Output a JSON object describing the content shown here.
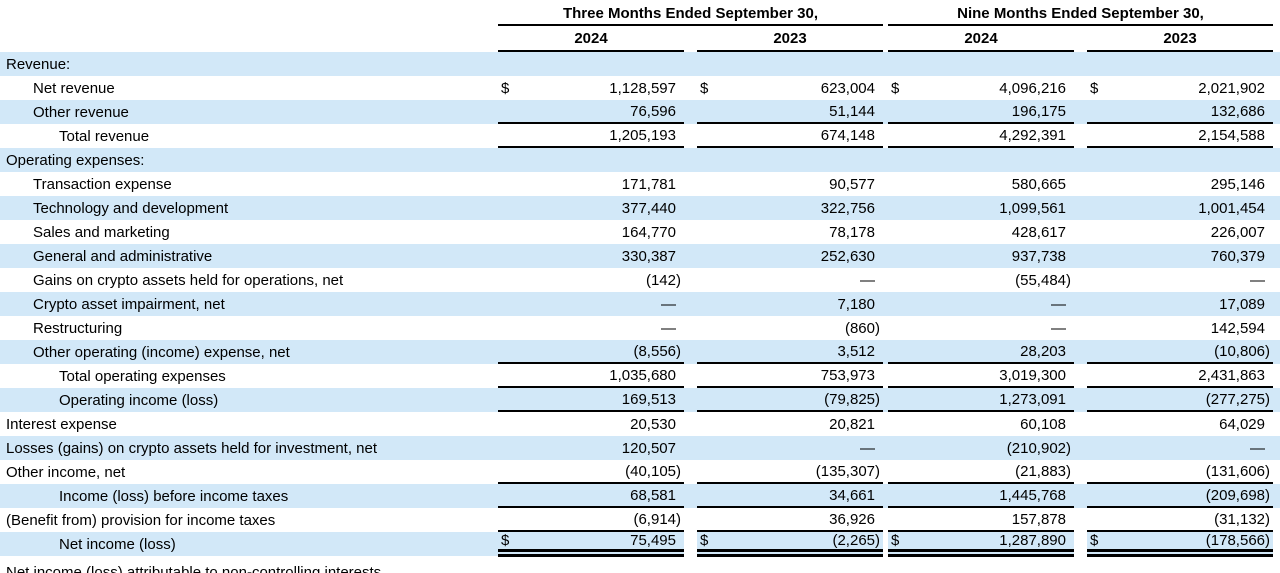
{
  "table": {
    "currency_symbol": "$",
    "stripe_color": "#d2e8f8",
    "line_color": "#000000",
    "header": {
      "period_groups": [
        {
          "label": "Three Months Ended September 30,",
          "years": [
            "2024",
            "2023"
          ]
        },
        {
          "label": "Nine Months Ended September 30,",
          "years": [
            "2024",
            "2023"
          ]
        }
      ]
    },
    "rows": [
      {
        "label": "Revenue:",
        "indent": 0,
        "dollar": false,
        "underline": "none",
        "values": null
      },
      {
        "label": "Net revenue",
        "indent": 1,
        "dollar": true,
        "underline": "none",
        "values": [
          "1,128,597",
          "623,004",
          "4,096,216",
          "2,021,902"
        ]
      },
      {
        "label": "Other revenue",
        "indent": 1,
        "dollar": false,
        "underline": "single",
        "values": [
          "76,596",
          "51,144",
          "196,175",
          "132,686"
        ]
      },
      {
        "label": "Total revenue",
        "indent": 2,
        "dollar": false,
        "underline": "single",
        "values": [
          "1,205,193",
          "674,148",
          "4,292,391",
          "2,154,588"
        ]
      },
      {
        "label": "Operating expenses:",
        "indent": 0,
        "dollar": false,
        "underline": "none",
        "values": null
      },
      {
        "label": "Transaction expense",
        "indent": 1,
        "dollar": false,
        "underline": "none",
        "values": [
          "171,781",
          "90,577",
          "580,665",
          "295,146"
        ]
      },
      {
        "label": "Technology and development",
        "indent": 1,
        "dollar": false,
        "underline": "none",
        "values": [
          "377,440",
          "322,756",
          "1,099,561",
          "1,001,454"
        ]
      },
      {
        "label": "Sales and marketing",
        "indent": 1,
        "dollar": false,
        "underline": "none",
        "values": [
          "164,770",
          "78,178",
          "428,617",
          "226,007"
        ]
      },
      {
        "label": "General and administrative",
        "indent": 1,
        "dollar": false,
        "underline": "none",
        "values": [
          "330,387",
          "252,630",
          "937,738",
          "760,379"
        ]
      },
      {
        "label": "Gains on crypto assets held for operations, net",
        "indent": 1,
        "dollar": false,
        "underline": "none",
        "values": [
          "(142)",
          "—",
          "(55,484)",
          "—"
        ]
      },
      {
        "label": "Crypto asset impairment, net",
        "indent": 1,
        "dollar": false,
        "underline": "none",
        "values": [
          "—",
          "7,180",
          "—",
          "17,089"
        ]
      },
      {
        "label": "Restructuring",
        "indent": 1,
        "dollar": false,
        "underline": "none",
        "values": [
          "—",
          "(860)",
          "—",
          "142,594"
        ]
      },
      {
        "label": "Other operating (income) expense, net",
        "indent": 1,
        "dollar": false,
        "underline": "single",
        "values": [
          "(8,556)",
          "3,512",
          "28,203",
          "(10,806)"
        ]
      },
      {
        "label": "Total operating expenses",
        "indent": 2,
        "dollar": false,
        "underline": "single",
        "values": [
          "1,035,680",
          "753,973",
          "3,019,300",
          "2,431,863"
        ]
      },
      {
        "label": "Operating income (loss)",
        "indent": 2,
        "dollar": false,
        "underline": "single",
        "values": [
          "169,513",
          "(79,825)",
          "1,273,091",
          "(277,275)"
        ]
      },
      {
        "label": "Interest expense",
        "indent": 0,
        "dollar": false,
        "underline": "none",
        "values": [
          "20,530",
          "20,821",
          "60,108",
          "64,029"
        ]
      },
      {
        "label": "Losses (gains) on crypto assets held for investment, net",
        "indent": 0,
        "dollar": false,
        "underline": "none",
        "values": [
          "120,507",
          "—",
          "(210,902)",
          "—"
        ]
      },
      {
        "label": "Other income, net",
        "indent": 0,
        "dollar": false,
        "underline": "single",
        "values": [
          "(40,105)",
          "(135,307)",
          "(21,883)",
          "(131,606)"
        ]
      },
      {
        "label": "Income (loss) before income taxes",
        "indent": 2,
        "dollar": false,
        "underline": "single",
        "values": [
          "68,581",
          "34,661",
          "1,445,768",
          "(209,698)"
        ]
      },
      {
        "label": "(Benefit from) provision for income taxes",
        "indent": 0,
        "dollar": false,
        "underline": "single",
        "values": [
          "(6,914)",
          "36,926",
          "157,878",
          "(31,132)"
        ]
      },
      {
        "label": "Net income (loss)",
        "indent": 2,
        "dollar": true,
        "underline": "double",
        "values": [
          "75,495",
          "(2,265)",
          "1,287,890",
          "(178,566)"
        ]
      }
    ],
    "clipped_row": {
      "label": "Net income (loss) attributable to non-controlling interests"
    }
  }
}
